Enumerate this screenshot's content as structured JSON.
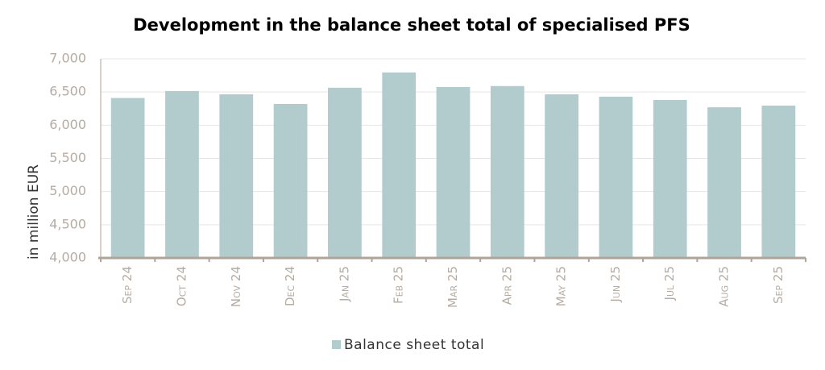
{
  "chart_data": {
    "type": "bar",
    "title": "Development in the balance sheet total of specialised  PFS",
    "y_label": "in million EUR",
    "categories": [
      "Sep 24",
      "Oct 24",
      "Nov 24",
      "Dec 24",
      "Jan 25",
      "Feb 25",
      "Mar 25",
      "Apr 25",
      "May 25",
      "Jun 25",
      "Jul 25",
      "Aug 25",
      "Sep 25"
    ],
    "series": [
      {
        "name": "Balance sheet total",
        "color": "#b2cbcc",
        "values": [
          6410,
          6515,
          6465,
          6320,
          6565,
          6795,
          6575,
          6590,
          6465,
          6430,
          6380,
          6270,
          6295
        ]
      }
    ],
    "ylim": [
      4000,
      7000
    ],
    "yticks": [
      {
        "value": 4000,
        "label": "4,000"
      },
      {
        "value": 4500,
        "label": "4,500"
      },
      {
        "value": 5000,
        "label": "5,000"
      },
      {
        "value": 5500,
        "label": "5,500"
      },
      {
        "value": 6000,
        "label": "6,000"
      },
      {
        "value": 6500,
        "label": "6,500"
      },
      {
        "value": 7000,
        "label": "7,000"
      }
    ],
    "grid": true
  }
}
